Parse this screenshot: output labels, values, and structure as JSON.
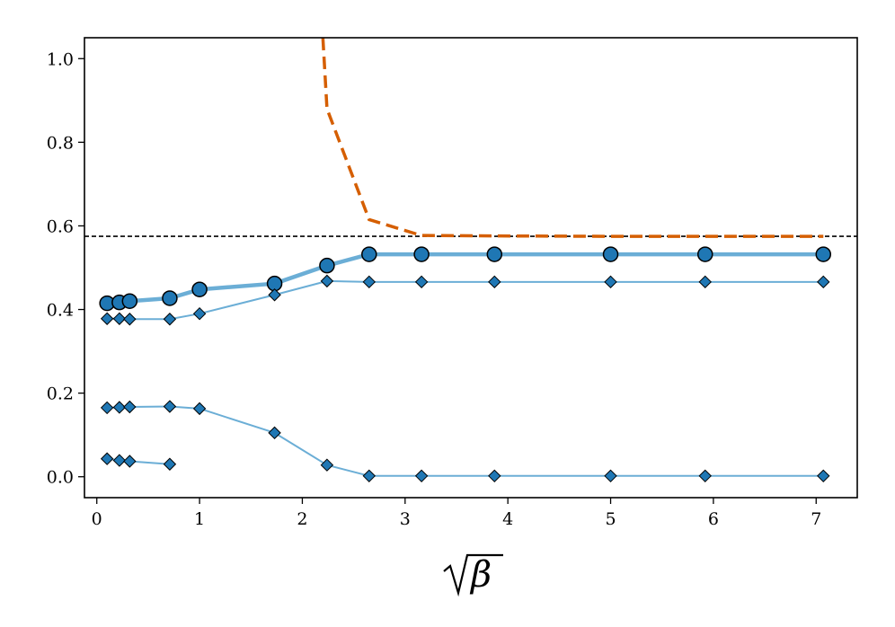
{
  "chart_data": {
    "type": "line",
    "title": "",
    "xlabel": "β",
    "xlabel_decoration": "square root",
    "ylabel": "",
    "xlim": [
      -0.12,
      7.4
    ],
    "ylim": [
      -0.05,
      1.05
    ],
    "xticks": [
      0,
      1,
      2,
      3,
      4,
      5,
      6,
      7
    ],
    "yticks": [
      0.0,
      0.2,
      0.4,
      0.6,
      0.8,
      1.0
    ],
    "xtick_labels": [
      "0",
      "1",
      "2",
      "3",
      "4",
      "5",
      "6",
      "7"
    ],
    "ytick_labels": [
      "0.0",
      "0.2",
      "0.4",
      "0.6",
      "0.8",
      "1.0"
    ],
    "grid": false,
    "legend": null,
    "hline": {
      "y": 0.575,
      "style": "dashed",
      "color": "#000000"
    },
    "colors": {
      "series_main": "#6baed6",
      "marker_fill": "#1f77b4",
      "marker_edge": "#000000",
      "dashed_curve": "#d55e00"
    },
    "series": [
      {
        "style": "thick-circles",
        "x": [
          0.1,
          0.22,
          0.32,
          0.71,
          1.0,
          1.73,
          2.24,
          2.65,
          3.16,
          3.87,
          5.0,
          5.92,
          7.07
        ],
        "values": [
          0.415,
          0.417,
          0.42,
          0.427,
          0.448,
          0.462,
          0.505,
          0.532,
          0.532,
          0.532,
          0.532,
          0.532,
          0.532
        ]
      },
      {
        "style": "diamonds",
        "x": [
          0.1,
          0.22,
          0.32,
          0.71,
          1.0,
          1.73,
          2.24,
          2.65,
          3.16,
          3.87,
          5.0,
          5.92,
          7.07
        ],
        "values": [
          0.378,
          0.378,
          0.377,
          0.377,
          0.39,
          0.435,
          0.468,
          0.466,
          0.466,
          0.466,
          0.466,
          0.466,
          0.466
        ]
      },
      {
        "style": "diamonds",
        "x": [
          0.1,
          0.22,
          0.32,
          0.71,
          1.0,
          1.73,
          2.24,
          2.65,
          3.16,
          3.87,
          5.0,
          5.92,
          7.07
        ],
        "values": [
          0.165,
          0.166,
          0.167,
          0.168,
          0.163,
          0.105,
          0.028,
          0.002,
          0.002,
          0.002,
          0.002,
          0.002,
          0.002
        ]
      },
      {
        "style": "diamonds",
        "x": [
          0.1,
          0.22,
          0.32,
          0.71
        ],
        "values": [
          0.043,
          0.039,
          0.037,
          0.03
        ]
      },
      {
        "style": "dashed",
        "x": [
          2.2,
          2.24,
          2.65,
          3.16,
          3.87,
          5.0,
          5.92,
          7.07
        ],
        "values": [
          1.05,
          0.88,
          0.615,
          0.577,
          0.576,
          0.575,
          0.575,
          0.575
        ]
      }
    ]
  }
}
